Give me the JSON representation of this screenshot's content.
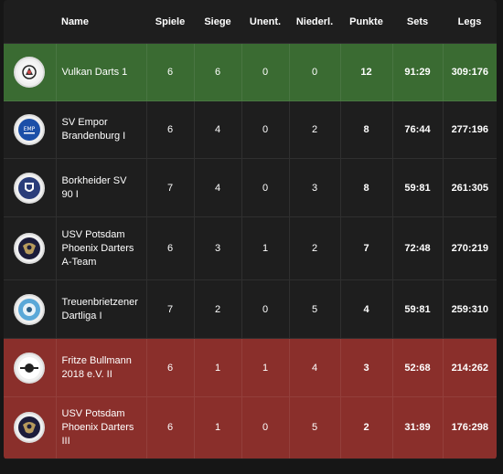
{
  "header": {
    "name": "Name",
    "games": "Spiele",
    "wins": "Siege",
    "draws": "Unent.",
    "losses": "Niederl.",
    "points": "Punkte",
    "sets": "Sets",
    "legs": "Legs"
  },
  "rows": [
    {
      "name_lines": [
        "Vulkan Darts 1"
      ],
      "games": "6",
      "wins": "6",
      "draws": "0",
      "losses": "0",
      "points": "12",
      "sets": "91:29",
      "legs": "309:176",
      "status": "promo"
    },
    {
      "name_lines": [
        "SV Empor",
        "Brandenburg I"
      ],
      "games": "6",
      "wins": "4",
      "draws": "0",
      "losses": "2",
      "points": "8",
      "sets": "76:44",
      "legs": "277:196",
      "status": "normal"
    },
    {
      "name_lines": [
        "Borkheider SV",
        "90 I"
      ],
      "games": "7",
      "wins": "4",
      "draws": "0",
      "losses": "3",
      "points": "8",
      "sets": "59:81",
      "legs": "261:305",
      "status": "normal"
    },
    {
      "name_lines": [
        "USV Potsdam",
        "Phoenix Darters",
        "A-Team"
      ],
      "games": "6",
      "wins": "3",
      "draws": "1",
      "losses": "2",
      "points": "7",
      "sets": "72:48",
      "legs": "270:219",
      "status": "normal"
    },
    {
      "name_lines": [
        "Treuenbrietzener",
        "Dartliga I"
      ],
      "games": "7",
      "wins": "2",
      "draws": "0",
      "losses": "5",
      "points": "4",
      "sets": "59:81",
      "legs": "259:310",
      "status": "normal"
    },
    {
      "name_lines": [
        "Fritze Bullmann",
        "2018 e.V. II"
      ],
      "games": "6",
      "wins": "1",
      "draws": "1",
      "losses": "4",
      "points": "3",
      "sets": "52:68",
      "legs": "214:262",
      "status": "releg"
    },
    {
      "name_lines": [
        "USV Potsdam",
        "Phoenix Darters",
        "III"
      ],
      "games": "6",
      "wins": "1",
      "draws": "0",
      "losses": "5",
      "points": "2",
      "sets": "31:89",
      "legs": "176:298",
      "status": "releg"
    }
  ],
  "logo_icons": [
    "vulkan-darts-logo-icon",
    "sv-empor-logo-icon",
    "borkheider-sv-logo-icon",
    "phoenix-darters-logo-icon",
    "treuenbrietzener-logo-icon",
    "fritze-bullmann-logo-icon",
    "phoenix-darters-logo-icon"
  ],
  "colors": {
    "promotion": "#3a6b32",
    "relegation": "#8a2f2b",
    "row": "#1e1e1e",
    "background": "#161616"
  }
}
